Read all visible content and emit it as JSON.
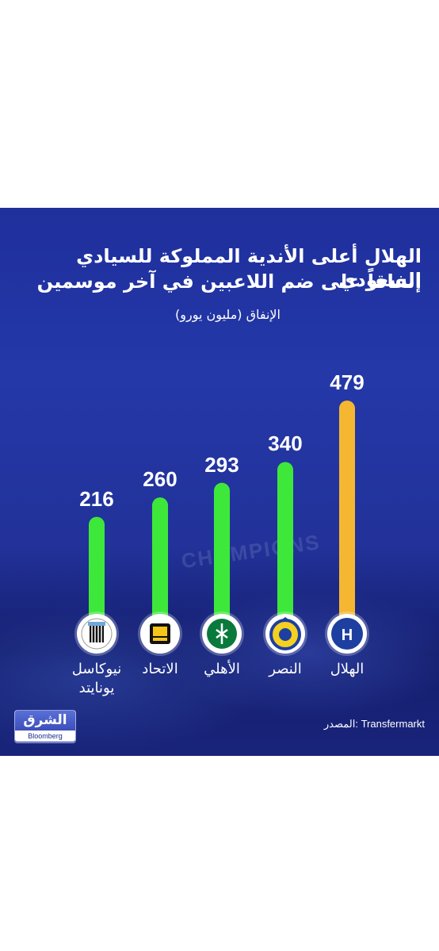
{
  "chart_data": {
    "type": "bar",
    "title": "الهلال أعلى الأندية المملوكة للسيادي السعودي",
    "title_line2": "إنفاقاً على ضم اللاعبين في آخر موسمين",
    "ylabel": "الإنفاق (مليون يورو)",
    "categories": [
      "الهلال",
      "النصر",
      "الأهلي",
      "الاتحاد",
      "نيوكاسل يونايتد"
    ],
    "category_lines": [
      [
        "الهلال"
      ],
      [
        "النصر"
      ],
      [
        "الأهلي"
      ],
      [
        "الاتحاد"
      ],
      [
        "نيوكاسل",
        "يونايتد"
      ]
    ],
    "values": [
      479,
      340,
      293,
      260,
      216
    ],
    "value_labels": [
      "479",
      "340",
      "293",
      "260",
      "216"
    ],
    "bar_colors": [
      "#f5b731",
      "#3ee83a",
      "#3ee83a",
      "#3ee83a",
      "#3ee83a"
    ],
    "logo_icons": [
      "alhilal-logo-icon",
      "alnassr-logo-icon",
      "alahli-logo-icon",
      "alittihad-logo-icon",
      "newcastle-logo-icon"
    ],
    "ylim": [
      0,
      479
    ],
    "grid": false,
    "legend": "none"
  },
  "background_text": "CHAMPIONS",
  "source": "المصدر: Transfermarkt",
  "brand": {
    "name": "الشرق",
    "sub": "Bloomberg"
  },
  "colors": {
    "background": "#2438a8",
    "highlight": "#f5b731",
    "bars": "#3ee83a",
    "text": "#ffffff"
  }
}
